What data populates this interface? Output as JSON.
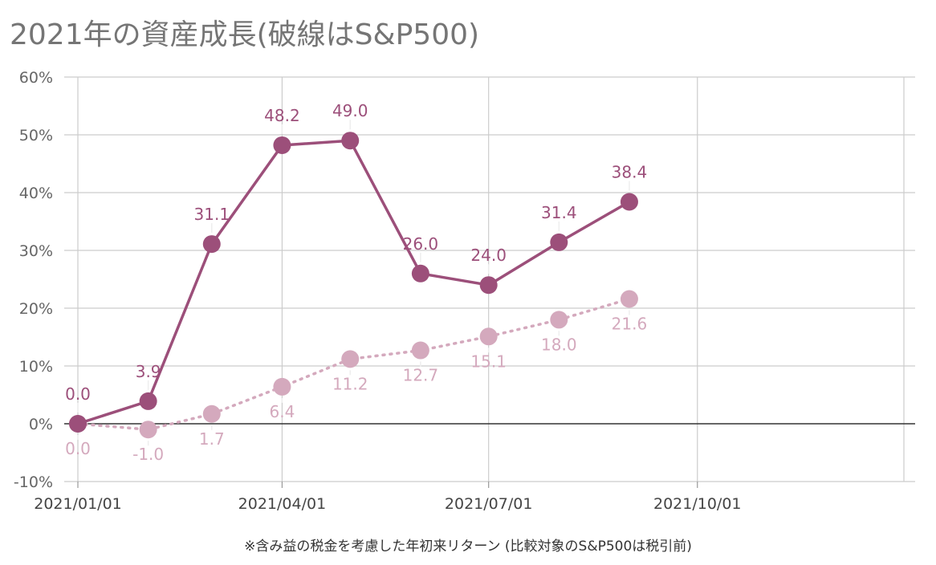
{
  "chart_data": {
    "type": "line",
    "title": "2021年の資産成長(破線はS&P500)",
    "caption": "※含み益の税金を考慮した年初来リターン (比較対象のS&P500は税引前)",
    "xlabel": "",
    "ylabel": "",
    "x_tick_labels": [
      "2021/01/01",
      "2021/04/01",
      "2021/07/01",
      "2021/10/01"
    ],
    "x_range": [
      "2021-01-01",
      "2021-12-31"
    ],
    "ylim": [
      -10,
      60
    ],
    "y_ticks": [
      -10,
      0,
      10,
      20,
      30,
      40,
      50,
      60
    ],
    "y_tick_format": "percent",
    "grid": true,
    "legend": "none",
    "series": [
      {
        "style": "solid",
        "color": "#9c4f7a",
        "x": [
          "2021-01-01",
          "2021-02-01",
          "2021-03-01",
          "2021-04-01",
          "2021-05-01",
          "2021-06-01",
          "2021-07-01",
          "2021-08-01",
          "2021-09-01"
        ],
        "values": [
          0.0,
          3.9,
          31.1,
          48.2,
          49.0,
          26.0,
          24.0,
          31.4,
          38.4
        ],
        "labels": [
          "0.0",
          "3.9",
          "31.1",
          "48.2",
          "49.0",
          "26.0",
          "24.0",
          "31.4",
          "38.4"
        ]
      },
      {
        "style": "dotted",
        "color": "#d4a9bd",
        "x": [
          "2021-01-01",
          "2021-02-01",
          "2021-03-01",
          "2021-04-01",
          "2021-05-01",
          "2021-06-01",
          "2021-07-01",
          "2021-08-01",
          "2021-09-01"
        ],
        "values": [
          0.0,
          -1.0,
          1.7,
          6.4,
          11.2,
          12.7,
          15.1,
          18.0,
          21.6
        ],
        "labels": [
          "0.0",
          "-1.0",
          "1.7",
          "6.4",
          "11.2",
          "12.7",
          "15.1",
          "18.0",
          "21.6"
        ]
      }
    ]
  }
}
